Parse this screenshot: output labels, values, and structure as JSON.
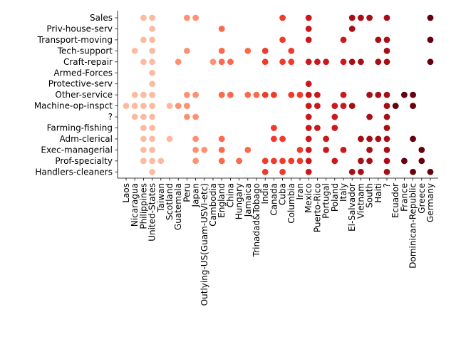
{
  "chart_data": {
    "type": "scatter",
    "title": "",
    "xlabel": "",
    "ylabel": "",
    "grid": false,
    "legend": "none",
    "x_categories": [
      "Laos",
      "Nicaragua",
      "Philippines",
      "United-States",
      "Taiwan",
      "Scotland",
      "Guatemala",
      "Peru",
      "Japan",
      "Outlying-US(Guam-USVI-etc)",
      "Cambodia",
      "England",
      "China",
      "Hungary",
      "Jamaica",
      "Trinadad&Tobago",
      "India",
      "Canada",
      "Cuba",
      "Columbia",
      "Iran",
      "Mexico",
      "Puerto-Rico",
      "Portugal",
      "Poland",
      "Italy",
      "El-Salvador",
      "Vietnam",
      "South",
      "Haiti",
      "?",
      "Ecuador",
      "France",
      "Dominican-Republic",
      "Greece",
      "Germany"
    ],
    "y_categories": [
      "Sales",
      "Priv-house-serv",
      "Transport-moving",
      "Tech-support",
      "Craft-repair",
      "Armed-Forces",
      "Protective-serv",
      "Other-service",
      "Machine-op-inspct",
      "?",
      "Farming-fishing",
      "Adm-clerical",
      "Exec-managerial",
      "Prof-specialty",
      "Handlers-cleaners"
    ],
    "color_scale": [
      "#fcbba1",
      "#fc9272",
      "#fb6a4a",
      "#ef3b2c",
      "#cb181d",
      "#a50f15",
      "#67000d"
    ],
    "points": [
      {
        "x": 0,
        "y": "Machine-op-inspct"
      },
      {
        "x": 1,
        "y": "Tech-support"
      },
      {
        "x": 1,
        "y": "Other-service"
      },
      {
        "x": 1,
        "y": "Machine-op-inspct"
      },
      {
        "x": 1,
        "y": "?"
      },
      {
        "x": 2,
        "y": "Sales"
      },
      {
        "x": 2,
        "y": "Transport-moving"
      },
      {
        "x": 2,
        "y": "Craft-repair"
      },
      {
        "x": 2,
        "y": "Other-service"
      },
      {
        "x": 2,
        "y": "Machine-op-inspct"
      },
      {
        "x": 2,
        "y": "?"
      },
      {
        "x": 2,
        "y": "Farming-fishing"
      },
      {
        "x": 2,
        "y": "Adm-clerical"
      },
      {
        "x": 2,
        "y": "Exec-managerial"
      },
      {
        "x": 2,
        "y": "Prof-specialty"
      },
      {
        "x": 3,
        "y": "Sales"
      },
      {
        "x": 3,
        "y": "Priv-house-serv"
      },
      {
        "x": 3,
        "y": "Transport-moving"
      },
      {
        "x": 3,
        "y": "Tech-support"
      },
      {
        "x": 3,
        "y": "Craft-repair"
      },
      {
        "x": 3,
        "y": "Armed-Forces"
      },
      {
        "x": 3,
        "y": "Protective-serv"
      },
      {
        "x": 3,
        "y": "Other-service"
      },
      {
        "x": 3,
        "y": "Machine-op-inspct"
      },
      {
        "x": 3,
        "y": "?"
      },
      {
        "x": 3,
        "y": "Farming-fishing"
      },
      {
        "x": 3,
        "y": "Adm-clerical"
      },
      {
        "x": 3,
        "y": "Exec-managerial"
      },
      {
        "x": 3,
        "y": "Prof-specialty"
      },
      {
        "x": 3,
        "y": "Handlers-cleaners"
      },
      {
        "x": 4,
        "y": "Prof-specialty"
      },
      {
        "x": 5,
        "y": "Machine-op-inspct"
      },
      {
        "x": 5,
        "y": "Adm-clerical"
      },
      {
        "x": 6,
        "y": "Craft-repair"
      },
      {
        "x": 6,
        "y": "Machine-op-inspct"
      },
      {
        "x": 7,
        "y": "Sales"
      },
      {
        "x": 7,
        "y": "Tech-support"
      },
      {
        "x": 7,
        "y": "Other-service"
      },
      {
        "x": 7,
        "y": "Machine-op-inspct"
      },
      {
        "x": 7,
        "y": "?"
      },
      {
        "x": 8,
        "y": "Sales"
      },
      {
        "x": 8,
        "y": "Other-service"
      },
      {
        "x": 8,
        "y": "?"
      },
      {
        "x": 8,
        "y": "Adm-clerical"
      },
      {
        "x": 8,
        "y": "Exec-managerial"
      },
      {
        "x": 8,
        "y": "Prof-specialty"
      },
      {
        "x": 9,
        "y": "Exec-managerial"
      },
      {
        "x": 10,
        "y": "Craft-repair"
      },
      {
        "x": 11,
        "y": "Priv-house-serv"
      },
      {
        "x": 11,
        "y": "Tech-support"
      },
      {
        "x": 11,
        "y": "Craft-repair"
      },
      {
        "x": 11,
        "y": "Other-service"
      },
      {
        "x": 11,
        "y": "Adm-clerical"
      },
      {
        "x": 11,
        "y": "Exec-managerial"
      },
      {
        "x": 11,
        "y": "Prof-specialty"
      },
      {
        "x": 12,
        "y": "Craft-repair"
      },
      {
        "x": 12,
        "y": "Other-service"
      },
      {
        "x": 13,
        "y": "Prof-specialty"
      },
      {
        "x": 14,
        "y": "Tech-support"
      },
      {
        "x": 14,
        "y": "Other-service"
      },
      {
        "x": 14,
        "y": "Exec-managerial"
      },
      {
        "x": 15,
        "y": "Other-service"
      },
      {
        "x": 16,
        "y": "Tech-support"
      },
      {
        "x": 16,
        "y": "Craft-repair"
      },
      {
        "x": 16,
        "y": "Other-service"
      },
      {
        "x": 16,
        "y": "Prof-specialty"
      },
      {
        "x": 16,
        "y": "Handlers-cleaners"
      },
      {
        "x": 17,
        "y": "Other-service"
      },
      {
        "x": 17,
        "y": "Farming-fishing"
      },
      {
        "x": 17,
        "y": "Adm-clerical"
      },
      {
        "x": 17,
        "y": "Prof-specialty"
      },
      {
        "x": 18,
        "y": "Sales"
      },
      {
        "x": 18,
        "y": "Transport-moving"
      },
      {
        "x": 18,
        "y": "Craft-repair"
      },
      {
        "x": 18,
        "y": "Adm-clerical"
      },
      {
        "x": 18,
        "y": "Prof-specialty"
      },
      {
        "x": 18,
        "y": "Handlers-cleaners"
      },
      {
        "x": 19,
        "y": "Tech-support"
      },
      {
        "x": 19,
        "y": "Craft-repair"
      },
      {
        "x": 19,
        "y": "Other-service"
      },
      {
        "x": 19,
        "y": "Prof-specialty"
      },
      {
        "x": 20,
        "y": "Other-service"
      },
      {
        "x": 20,
        "y": "Exec-managerial"
      },
      {
        "x": 20,
        "y": "Prof-specialty"
      },
      {
        "x": 21,
        "y": "Sales"
      },
      {
        "x": 21,
        "y": "Priv-house-serv"
      },
      {
        "x": 21,
        "y": "Transport-moving"
      },
      {
        "x": 21,
        "y": "Craft-repair"
      },
      {
        "x": 21,
        "y": "Protective-serv"
      },
      {
        "x": 21,
        "y": "Other-service"
      },
      {
        "x": 21,
        "y": "Machine-op-inspct"
      },
      {
        "x": 21,
        "y": "?"
      },
      {
        "x": 21,
        "y": "Farming-fishing"
      },
      {
        "x": 21,
        "y": "Adm-clerical"
      },
      {
        "x": 21,
        "y": "Exec-managerial"
      },
      {
        "x": 21,
        "y": "Prof-specialty"
      },
      {
        "x": 21,
        "y": "Handlers-cleaners"
      },
      {
        "x": 22,
        "y": "Craft-repair"
      },
      {
        "x": 22,
        "y": "Other-service"
      },
      {
        "x": 22,
        "y": "Machine-op-inspct"
      },
      {
        "x": 22,
        "y": "Farming-fishing"
      },
      {
        "x": 23,
        "y": "Craft-repair"
      },
      {
        "x": 23,
        "y": "Adm-clerical"
      },
      {
        "x": 23,
        "y": "Exec-managerial"
      },
      {
        "x": 24,
        "y": "Machine-op-inspct"
      },
      {
        "x": 24,
        "y": "?"
      },
      {
        "x": 24,
        "y": "Farming-fishing"
      },
      {
        "x": 24,
        "y": "Prof-specialty"
      },
      {
        "x": 25,
        "y": "Transport-moving"
      },
      {
        "x": 25,
        "y": "Craft-repair"
      },
      {
        "x": 25,
        "y": "Other-service"
      },
      {
        "x": 25,
        "y": "Machine-op-inspct"
      },
      {
        "x": 25,
        "y": "Exec-managerial"
      },
      {
        "x": 26,
        "y": "Sales"
      },
      {
        "x": 26,
        "y": "Priv-house-serv"
      },
      {
        "x": 26,
        "y": "Craft-repair"
      },
      {
        "x": 26,
        "y": "Machine-op-inspct"
      },
      {
        "x": 26,
        "y": "Handlers-cleaners"
      },
      {
        "x": 27,
        "y": "Sales"
      },
      {
        "x": 27,
        "y": "Craft-repair"
      },
      {
        "x": 27,
        "y": "Adm-clerical"
      },
      {
        "x": 27,
        "y": "Prof-specialty"
      },
      {
        "x": 27,
        "y": "Handlers-cleaners"
      },
      {
        "x": 28,
        "y": "Sales"
      },
      {
        "x": 28,
        "y": "Other-service"
      },
      {
        "x": 28,
        "y": "?"
      },
      {
        "x": 28,
        "y": "Adm-clerical"
      },
      {
        "x": 28,
        "y": "Exec-managerial"
      },
      {
        "x": 28,
        "y": "Prof-specialty"
      },
      {
        "x": 29,
        "y": "Transport-moving"
      },
      {
        "x": 29,
        "y": "Craft-repair"
      },
      {
        "x": 29,
        "y": "Other-service"
      },
      {
        "x": 29,
        "y": "Adm-clerical"
      },
      {
        "x": 30,
        "y": "Sales"
      },
      {
        "x": 30,
        "y": "Transport-moving"
      },
      {
        "x": 30,
        "y": "Tech-support"
      },
      {
        "x": 30,
        "y": "Craft-repair"
      },
      {
        "x": 30,
        "y": "Other-service"
      },
      {
        "x": 30,
        "y": "Machine-op-inspct"
      },
      {
        "x": 30,
        "y": "?"
      },
      {
        "x": 30,
        "y": "Farming-fishing"
      },
      {
        "x": 30,
        "y": "Adm-clerical"
      },
      {
        "x": 30,
        "y": "Exec-managerial"
      },
      {
        "x": 30,
        "y": "Prof-specialty"
      },
      {
        "x": 30,
        "y": "Handlers-cleaners"
      },
      {
        "x": 31,
        "y": "Machine-op-inspct"
      },
      {
        "x": 32,
        "y": "Other-service"
      },
      {
        "x": 32,
        "y": "Prof-specialty"
      },
      {
        "x": 33,
        "y": "Other-service"
      },
      {
        "x": 33,
        "y": "Machine-op-inspct"
      },
      {
        "x": 33,
        "y": "Adm-clerical"
      },
      {
        "x": 33,
        "y": "Handlers-cleaners"
      },
      {
        "x": 34,
        "y": "Exec-managerial"
      },
      {
        "x": 34,
        "y": "Prof-specialty"
      },
      {
        "x": 35,
        "y": "Sales"
      },
      {
        "x": 35,
        "y": "Transport-moving"
      },
      {
        "x": 35,
        "y": "Craft-repair"
      },
      {
        "x": 35,
        "y": "Handlers-cleaners"
      }
    ]
  }
}
